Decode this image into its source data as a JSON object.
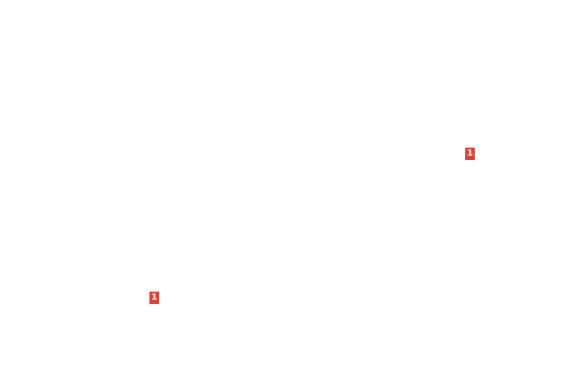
{
  "badges": [
    {
      "label": "1",
      "color": "#d2463f"
    },
    {
      "label": "1",
      "color": "#d2463f"
    }
  ]
}
